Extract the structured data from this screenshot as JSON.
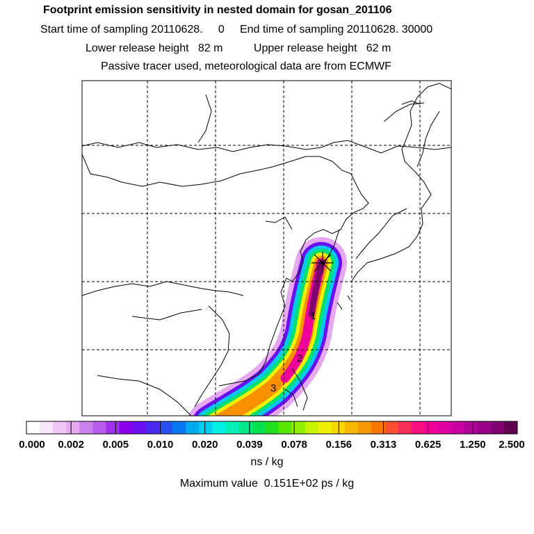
{
  "header": {
    "title": "Footprint emission sensitivity in nested domain for gosan_201106",
    "line1": "Start time of sampling 20110628.     0     End time of sampling 20110628. 30000",
    "line2": "Lower release height   82 m          Upper release height   62 m",
    "line3": "Passive tracer used, meteorological data are from ECMWF"
  },
  "markers": {
    "m1": "1",
    "m2": "2",
    "m3": "3"
  },
  "colorbar": {
    "colors": [
      "#ffffff",
      "#f8e6fa",
      "#f0c8f6",
      "#e6a8f0",
      "#cc80ee",
      "#b85cec",
      "#a030ec",
      "#8a00ee",
      "#6a10f0",
      "#4a28f2",
      "#2a50f4",
      "#0878f2",
      "#00a8f0",
      "#00d0f0",
      "#00f0e6",
      "#00f0b8",
      "#00e888",
      "#00e050",
      "#20e020",
      "#58e800",
      "#90f000",
      "#c8f400",
      "#f0f000",
      "#f8d800",
      "#f8b800",
      "#f89800",
      "#f87800",
      "#f85030",
      "#f83058",
      "#f81080",
      "#f00098",
      "#e000a0",
      "#c800a0",
      "#b00098",
      "#980088",
      "#800070",
      "#600050"
    ],
    "tick_labels": [
      "0.000",
      "0.002",
      "0.005",
      "0.010",
      "0.020",
      "0.039",
      "0.078",
      "0.156",
      "0.313",
      "0.625",
      "1.250",
      "2.500"
    ]
  },
  "unit": "ns / kg",
  "max_value": "Maximum value  0.151E+02 ps / kg"
}
